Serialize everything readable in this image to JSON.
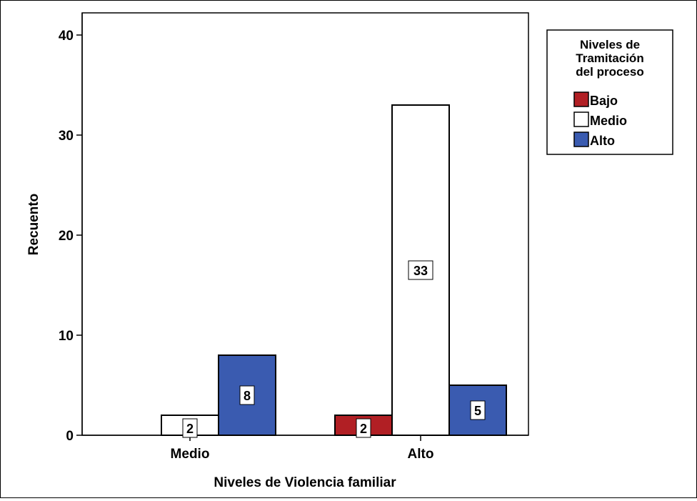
{
  "chart_data": {
    "type": "bar",
    "xlabel": "Niveles de Violencia familiar",
    "ylabel": "Recuento",
    "categories": [
      "Medio",
      "Alto"
    ],
    "ylim": [
      0,
      40
    ],
    "yticks": [
      0,
      10,
      20,
      30,
      40
    ],
    "grid": false,
    "legend": {
      "title": "Niveles de Tramitación del proceso",
      "title_lines": [
        "Niveles de",
        "Tramitación",
        "del proceso"
      ],
      "position": "top-right, outside plot"
    },
    "series": [
      {
        "name": "Bajo",
        "color": "#b11f24",
        "values": [
          0,
          2
        ]
      },
      {
        "name": "Medio",
        "color": "#ffffff",
        "values": [
          2,
          33
        ]
      },
      {
        "name": "Alto",
        "color": "#3a5bb0",
        "values": [
          8,
          5
        ]
      }
    ]
  }
}
